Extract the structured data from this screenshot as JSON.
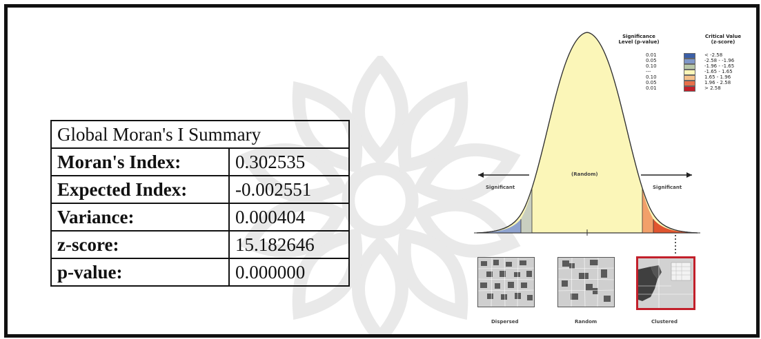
{
  "summary": {
    "title": "Global Moran's I Summary",
    "rows": [
      {
        "label": "Moran's Index:",
        "value": "0.302535"
      },
      {
        "label": "Expected Index:",
        "value": "-0.002551"
      },
      {
        "label": "Variance:",
        "value": "0.000404"
      },
      {
        "label": "z-score:",
        "value": "15.182646"
      },
      {
        "label": "p-value:",
        "value": "0.000000"
      }
    ]
  },
  "legend": {
    "col1_header": "Significance Level (p-value)",
    "col2_header": "Critical Value (z-score)",
    "rows": [
      {
        "p": "0.01",
        "z": "< -2.58",
        "color": "#3b5fa8"
      },
      {
        "p": "0.05",
        "z": "-2.58 - -1.96",
        "color": "#7f97c8"
      },
      {
        "p": "0.10",
        "z": "-1.96 - -1.65",
        "color": "#b9c7a8"
      },
      {
        "p": "---",
        "z": "-1.65 - 1.65",
        "color": "#fbf6b8"
      },
      {
        "p": "0.10",
        "z": "1.65 - 1.96",
        "color": "#f3c08a"
      },
      {
        "p": "0.05",
        "z": "1.96 - 2.58",
        "color": "#e8704a"
      },
      {
        "p": "0.01",
        "z": "> 2.58",
        "color": "#c21f2a"
      }
    ]
  },
  "curve": {
    "center_label": "(Random)",
    "left_label": "Significant",
    "right_label": "Significant"
  },
  "patterns": [
    {
      "label": "Dispersed"
    },
    {
      "label": "Random"
    },
    {
      "label": "Clustered"
    }
  ],
  "colors": {
    "curve_fill": "#fbf6b8",
    "left_tail_outer": "#8fa3cf",
    "left_tail_inner": "#c9cfc0",
    "right_tail_inner": "#f2a06a",
    "right_tail_outer": "#e0552f",
    "selected": "#c21f2a"
  }
}
